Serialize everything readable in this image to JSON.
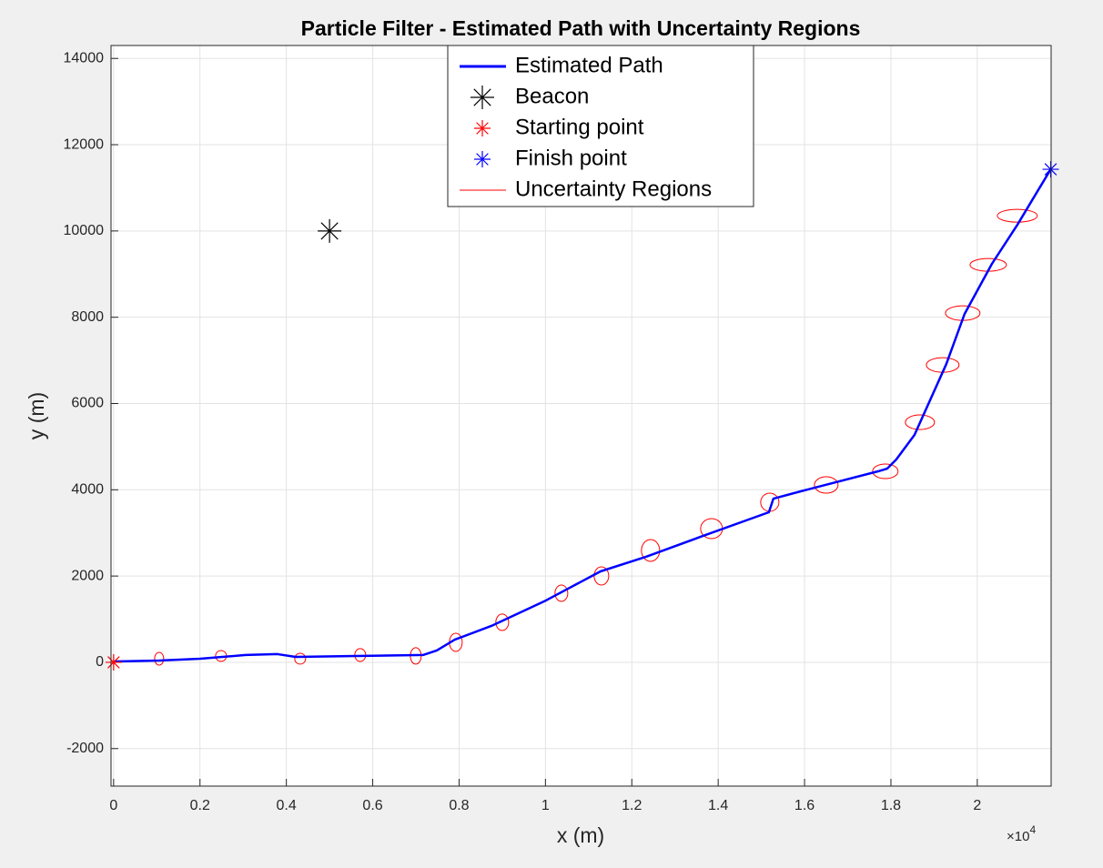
{
  "chart_data": {
    "type": "line",
    "title": "Particle Filter - Estimated Path with Uncertainty Regions",
    "x_label": "x (m)",
    "y_label": "y (m)",
    "x_multiplier_base": "×10",
    "x_multiplier_exponent": "4",
    "xlim": [
      -60,
      21710
    ],
    "ylim": [
      -2870,
      14300
    ],
    "xticks": [
      {
        "value": 0,
        "label": "0"
      },
      {
        "value": 2000,
        "label": "0.2"
      },
      {
        "value": 4000,
        "label": "0.4"
      },
      {
        "value": 6000,
        "label": "0.6"
      },
      {
        "value": 8000,
        "label": "0.8"
      },
      {
        "value": 10000,
        "label": "1"
      },
      {
        "value": 12000,
        "label": "1.2"
      },
      {
        "value": 14000,
        "label": "1.4"
      },
      {
        "value": 16000,
        "label": "1.6"
      },
      {
        "value": 18000,
        "label": "1.8"
      },
      {
        "value": 20000,
        "label": "2"
      }
    ],
    "yticks": [
      -2000,
      0,
      2000,
      4000,
      6000,
      8000,
      10000,
      12000,
      14000
    ],
    "grid": true,
    "legend_position": "top",
    "series": [
      {
        "name": "Estimated Path",
        "color": "#0000ff",
        "style": "line",
        "x": [
          0,
          1054,
          2002,
          3056,
          3793,
          4215,
          5796,
          7165,
          7482,
          7903,
          8746,
          10011,
          11275,
          12329,
          13593,
          15174,
          15279,
          15911,
          17703,
          17914,
          18124,
          18546,
          19283,
          19705,
          20337,
          20927,
          21700
        ],
        "y": [
          20,
          40,
          84,
          169,
          190,
          126,
          148,
          169,
          274,
          527,
          843,
          1434,
          2108,
          2446,
          2910,
          3479,
          3795,
          3964,
          4428,
          4491,
          4702,
          5271,
          6916,
          8075,
          9235,
          10141,
          11430
        ]
      },
      {
        "name": "Beacon",
        "color": "#000000",
        "style": "marker",
        "marker_size": 13,
        "x": [
          5000
        ],
        "y": [
          10000
        ]
      },
      {
        "name": "Starting point",
        "color": "#ff0000",
        "style": "marker",
        "marker_size": 9,
        "x": [
          0
        ],
        "y": [
          0
        ]
      },
      {
        "name": "Finish point",
        "color": "#0000ff",
        "style": "marker",
        "marker_size": 9,
        "x": [
          21700
        ],
        "y": [
          11430
        ]
      },
      {
        "name": "Uncertainty Regions",
        "color": "#ff0000",
        "style": "ellipse",
        "x": [
          1054,
          2487,
          4320,
          5711,
          6997,
          7924,
          8999,
          10369,
          11296,
          12434,
          13846,
          15195,
          16502,
          17871,
          18672,
          19199,
          19663,
          20253,
          20927
        ],
        "y": [
          84,
          148,
          84,
          169,
          148,
          464,
          928,
          1602,
          2003,
          2593,
          3099,
          3711,
          4111,
          4428,
          5566,
          6894,
          8096,
          9214,
          10352
        ],
        "rx": [
          105,
          126,
          126,
          126,
          126,
          148,
          148,
          148,
          169,
          211,
          253,
          211,
          274,
          295,
          337,
          379,
          400,
          421,
          464
        ],
        "ry": [
          148,
          126,
          126,
          148,
          190,
          211,
          190,
          190,
          211,
          253,
          232,
          211,
          190,
          169,
          169,
          169,
          169,
          148,
          148
        ]
      }
    ]
  }
}
